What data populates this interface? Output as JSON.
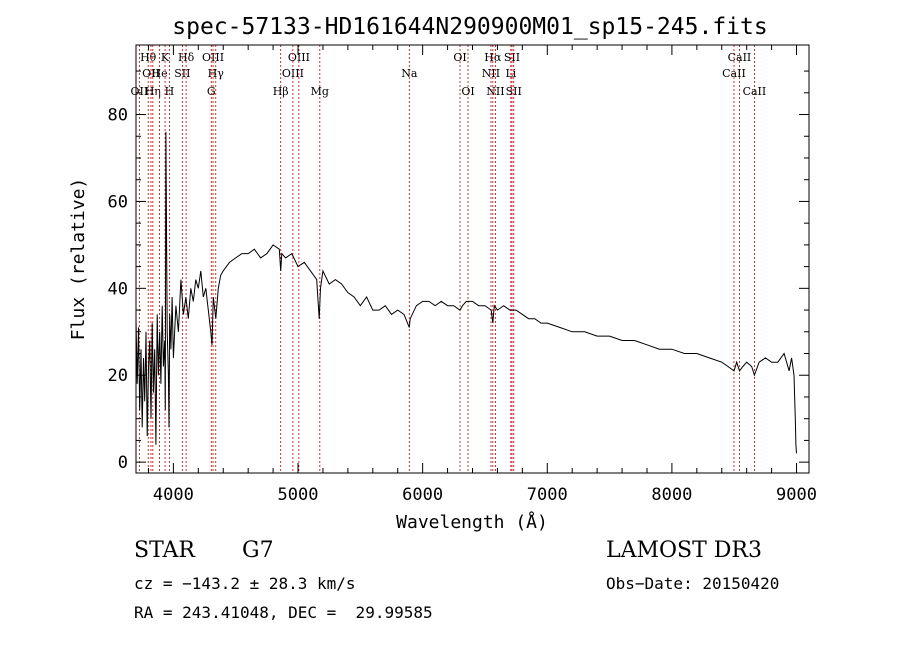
{
  "chart_data": {
    "type": "line",
    "title": "spec-57133-HD161644N290900M01_sp15-245.fits",
    "xlabel": "Wavelength (Å)",
    "ylabel": "Flux (relative)",
    "xlim": [
      3700,
      9100
    ],
    "ylim": [
      -2.5,
      96
    ],
    "xticks": [
      4000,
      5000,
      6000,
      7000,
      8000,
      9000
    ],
    "yticks": [
      0,
      20,
      40,
      60,
      80
    ],
    "series": [
      {
        "name": "spectrum",
        "x": [
          3700,
          3710,
          3720,
          3730,
          3740,
          3750,
          3760,
          3770,
          3780,
          3790,
          3800,
          3810,
          3820,
          3830,
          3840,
          3850,
          3860,
          3870,
          3880,
          3890,
          3900,
          3910,
          3920,
          3930,
          3935,
          3940,
          3950,
          3960,
          3965,
          3970,
          3980,
          3990,
          4000,
          4020,
          4040,
          4060,
          4080,
          4100,
          4120,
          4140,
          4160,
          4180,
          4200,
          4220,
          4240,
          4260,
          4280,
          4300,
          4310,
          4320,
          4340,
          4360,
          4380,
          4400,
          4450,
          4500,
          4550,
          4600,
          4650,
          4700,
          4750,
          4800,
          4850,
          4861,
          4870,
          4900,
          4950,
          5000,
          5050,
          5100,
          5150,
          5170,
          5180,
          5200,
          5250,
          5300,
          5350,
          5400,
          5450,
          5500,
          5550,
          5600,
          5650,
          5700,
          5750,
          5800,
          5850,
          5893,
          5900,
          5950,
          6000,
          6050,
          6100,
          6150,
          6200,
          6250,
          6300,
          6320,
          6350,
          6400,
          6450,
          6500,
          6550,
          6563,
          6575,
          6600,
          6650,
          6700,
          6750,
          6800,
          6850,
          6900,
          6950,
          7000,
          7100,
          7200,
          7300,
          7400,
          7500,
          7600,
          7700,
          7800,
          7900,
          8000,
          8100,
          8200,
          8300,
          8400,
          8450,
          8498,
          8520,
          8542,
          8570,
          8600,
          8640,
          8662,
          8700,
          8750,
          8800,
          8850,
          8900,
          8940,
          8960,
          8980,
          8990,
          8995,
          9000
        ],
        "values": [
          33,
          18,
          31,
          12,
          26,
          8,
          24,
          14,
          30,
          6,
          22,
          28,
          10,
          32,
          16,
          26,
          4,
          34,
          20,
          30,
          18,
          36,
          22,
          28,
          12,
          76,
          30,
          20,
          8,
          34,
          26,
          38,
          24,
          36,
          30,
          42,
          34,
          38,
          33,
          40,
          37,
          42,
          40,
          44,
          38,
          40,
          35,
          30,
          27,
          38,
          33,
          40,
          43,
          44,
          46,
          47,
          48,
          48,
          49,
          47,
          48,
          50,
          49,
          44,
          48,
          47,
          48,
          45,
          46,
          44,
          42,
          33,
          40,
          44,
          41,
          42,
          41,
          39,
          38,
          36,
          38,
          35,
          35,
          36,
          34,
          35,
          34,
          31,
          33,
          36,
          37,
          37,
          36,
          37,
          36,
          36,
          35,
          36,
          37,
          37,
          36,
          36,
          35,
          32,
          36,
          35,
          36,
          35,
          35,
          34,
          33,
          33,
          32,
          32,
          31,
          30,
          30,
          29,
          29,
          28,
          28,
          27,
          26,
          26,
          25,
          25,
          24,
          23,
          22,
          21,
          23,
          21,
          22,
          23,
          22,
          20,
          23,
          24,
          23,
          23,
          25,
          21,
          24,
          20,
          10,
          4,
          2
        ]
      }
    ],
    "lines": [
      {
        "name": "OII",
        "wavelength": 3727,
        "row": 3
      },
      {
        "name": "Hθ",
        "wavelength": 3798,
        "row": 1
      },
      {
        "name": "OII",
        "wavelength": 3820,
        "row": 2
      },
      {
        "name": "Hη",
        "wavelength": 3835,
        "row": 3
      },
      {
        "name": "He",
        "wavelength": 3889,
        "row": 2
      },
      {
        "name": "K",
        "wavelength": 3933,
        "row": 1
      },
      {
        "name": "H",
        "wavelength": 3968,
        "row": 3
      },
      {
        "name": "Hδ",
        "wavelength": 4102,
        "row": 1
      },
      {
        "name": "SII",
        "wavelength": 4072,
        "row": 2
      },
      {
        "name": "OIII",
        "wavelength": 4318,
        "row": 1
      },
      {
        "name": "Hγ",
        "wavelength": 4340,
        "row": 2
      },
      {
        "name": "G",
        "wavelength": 4304,
        "row": 3
      },
      {
        "name": "Hβ",
        "wavelength": 4861,
        "row": 3
      },
      {
        "name": "OIII",
        "wavelength": 5007,
        "row": 1
      },
      {
        "name": "OIII",
        "wavelength": 4959,
        "row": 2
      },
      {
        "name": "Mg",
        "wavelength": 5175,
        "row": 3
      },
      {
        "name": "Na",
        "wavelength": 5893,
        "row": 2
      },
      {
        "name": "OI",
        "wavelength": 6300,
        "row": 1
      },
      {
        "name": "OI",
        "wavelength": 6364,
        "row": 3
      },
      {
        "name": "Hα",
        "wavelength": 6563,
        "row": 1
      },
      {
        "name": "NII",
        "wavelength": 6548,
        "row": 2
      },
      {
        "name": "NII",
        "wavelength": 6584,
        "row": 3
      },
      {
        "name": "SII",
        "wavelength": 6717,
        "row": 1
      },
      {
        "name": "Li",
        "wavelength": 6708,
        "row": 2
      },
      {
        "name": "SII",
        "wavelength": 6731,
        "row": 3
      },
      {
        "name": "CaII",
        "wavelength": 8542,
        "row": 1
      },
      {
        "name": "CaII",
        "wavelength": 8498,
        "row": 2
      },
      {
        "name": "CaII",
        "wavelength": 8662,
        "row": 3
      }
    ]
  },
  "info": {
    "object_class": "STAR",
    "subclass": "G7",
    "survey": "LAMOST DR3",
    "redshift_line": "cz = −143.2 ± 28.3 km/s",
    "obs_date_line": "Obs−Date: 20150420",
    "coords_line": "RA = 243.41048, DEC =  29.99585"
  },
  "colors": {
    "line_markers": "#c00000",
    "spectrum": "#000000",
    "background": "#ffffff"
  }
}
